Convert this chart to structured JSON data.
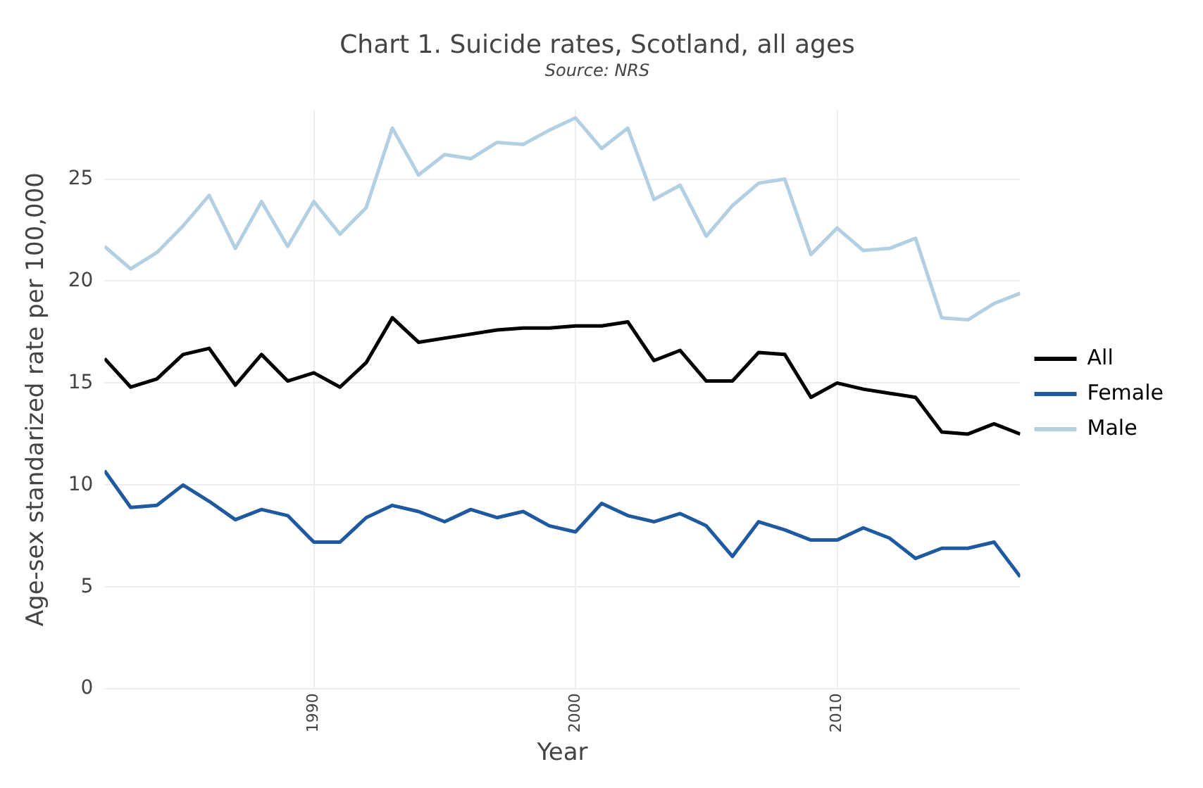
{
  "chart_data": {
    "type": "line",
    "title": "Chart 1. Suicide rates, Scotland, all ages",
    "subtitle": "Source: NRS",
    "xlabel": "Year",
    "ylabel": "Age-sex standarized rate per 100,000",
    "x": [
      1982,
      1983,
      1984,
      1985,
      1986,
      1987,
      1988,
      1989,
      1990,
      1991,
      1992,
      1993,
      1994,
      1995,
      1996,
      1997,
      1998,
      1999,
      2000,
      2001,
      2002,
      2003,
      2004,
      2005,
      2006,
      2007,
      2008,
      2009,
      2010,
      2011,
      2012,
      2013,
      2014,
      2015,
      2016,
      2017
    ],
    "series": [
      {
        "name": "All",
        "color": "#000000",
        "values": [
          16.2,
          14.8,
          15.2,
          16.4,
          16.7,
          14.9,
          16.4,
          15.1,
          15.5,
          14.8,
          16.0,
          18.2,
          17.0,
          17.2,
          17.4,
          17.6,
          17.7,
          17.7,
          17.8,
          17.8,
          18.0,
          16.1,
          16.6,
          15.1,
          15.1,
          16.5,
          16.4,
          14.3,
          15.0,
          14.7,
          14.5,
          14.3,
          12.6,
          12.5,
          13.0,
          12.5
        ]
      },
      {
        "name": "Female",
        "color": "#1f5aa0",
        "values": [
          10.7,
          8.9,
          9.0,
          10.0,
          9.2,
          8.3,
          8.8,
          8.5,
          7.2,
          7.2,
          8.4,
          9.0,
          8.7,
          8.2,
          8.8,
          8.4,
          8.7,
          8.0,
          7.7,
          9.1,
          8.5,
          8.2,
          8.6,
          8.0,
          6.5,
          8.2,
          7.8,
          7.3,
          7.3,
          7.9,
          7.4,
          6.4,
          6.9,
          6.9,
          7.2,
          5.5
        ]
      },
      {
        "name": "Male",
        "color": "#b3d0e3",
        "values": [
          21.7,
          20.6,
          21.4,
          22.7,
          24.2,
          21.6,
          23.9,
          21.7,
          23.9,
          22.3,
          23.6,
          27.5,
          25.2,
          26.2,
          26.0,
          26.8,
          26.7,
          27.4,
          28.0,
          26.5,
          27.5,
          24.0,
          24.7,
          22.2,
          23.7,
          24.8,
          25.0,
          21.3,
          22.6,
          21.5,
          21.6,
          22.1,
          18.2,
          18.1,
          18.9,
          19.4
        ]
      }
    ],
    "xlim": [
      1982,
      2017
    ],
    "xticks": [
      1990,
      2000,
      2010
    ],
    "ylim": [
      0,
      28.4
    ],
    "yticks": [
      0,
      5,
      10,
      15,
      20,
      25
    ],
    "grid": true,
    "legend": "right",
    "marker": "none",
    "line_style": "solid"
  }
}
